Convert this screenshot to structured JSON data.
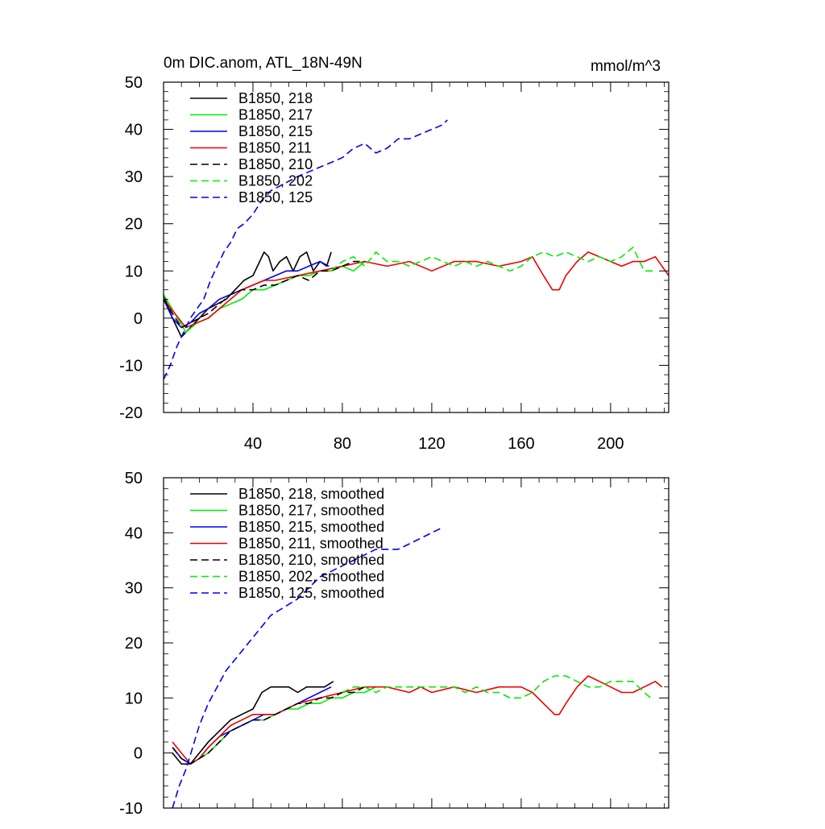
{
  "figure": {
    "title_left": "0m DIC.anom, ATL_18N-49N",
    "title_right": "mmol/m^3"
  },
  "chart_data": [
    {
      "type": "line",
      "panel": "top",
      "xlim": [
        0,
        226
      ],
      "ylim": [
        -20,
        50
      ],
      "x_ticks": [
        40,
        80,
        120,
        160,
        200
      ],
      "x_tick_labels": [
        "40",
        "80",
        "120",
        "160",
        "200"
      ],
      "y_ticks": [
        -20,
        -10,
        0,
        10,
        20,
        30,
        40,
        50
      ],
      "y_tick_labels": [
        "-20",
        "-10",
        "0",
        "10",
        "20",
        "30",
        "40",
        "50"
      ],
      "grid": false,
      "legend_position": "top-left",
      "series": [
        {
          "name": "B1850, 218",
          "color": "#000000",
          "dash": "solid",
          "x": [
            0,
            4,
            8,
            12,
            16,
            20,
            24,
            28,
            32,
            36,
            40,
            43,
            45,
            47,
            49,
            52,
            55,
            58,
            61,
            64,
            67,
            70,
            73,
            75
          ],
          "y": [
            5,
            0,
            -4,
            -2,
            0,
            2,
            3,
            4,
            6,
            8,
            9,
            12,
            14,
            13,
            10,
            12,
            13,
            10,
            13,
            14,
            10,
            12,
            11,
            14
          ]
        },
        {
          "name": "B1850, 217",
          "color": "#00ee00",
          "dash": "solid",
          "x": [
            0,
            5,
            10,
            15,
            20,
            25,
            30,
            35,
            40,
            45,
            50,
            55,
            60,
            65,
            70,
            75,
            80,
            85,
            90
          ],
          "y": [
            5,
            1,
            -3,
            -1,
            0,
            2,
            3,
            4,
            6,
            6,
            7,
            8,
            9,
            9,
            10,
            10,
            11,
            10,
            12
          ]
        },
        {
          "name": "B1850, 215",
          "color": "#0000ee",
          "dash": "solid",
          "x": [
            0,
            4,
            8,
            12,
            16,
            20,
            25,
            30,
            35,
            40,
            45,
            50,
            55,
            60,
            65,
            70,
            74
          ],
          "y": [
            4,
            0,
            -2,
            -1,
            1,
            2,
            4,
            5,
            6,
            7,
            8,
            9,
            10,
            10,
            11,
            12,
            11
          ]
        },
        {
          "name": "B1850, 211",
          "color": "#ee0000",
          "dash": "solid",
          "x": [
            0,
            5,
            10,
            15,
            20,
            25,
            30,
            35,
            40,
            45,
            50,
            60,
            70,
            80,
            90,
            100,
            110,
            120,
            130,
            140,
            150,
            160,
            165,
            170,
            174,
            177,
            180,
            185,
            190,
            195,
            200,
            205,
            210,
            215,
            220,
            226
          ],
          "y": [
            4,
            1,
            -2,
            -1,
            0,
            2,
            4,
            6,
            7,
            8,
            8,
            9,
            10,
            11,
            12,
            11,
            12,
            10,
            12,
            12,
            11,
            12,
            13,
            9,
            6,
            6,
            9,
            12,
            14,
            13,
            12,
            11,
            12,
            12,
            13,
            9
          ]
        },
        {
          "name": "B1850, 210",
          "color": "#000000",
          "dash": "dashed",
          "x": [
            0,
            4,
            8,
            12,
            16,
            20,
            25,
            30,
            35,
            40,
            45,
            50,
            55,
            60,
            65,
            70,
            75,
            80,
            85,
            90
          ],
          "y": [
            4,
            1,
            -2,
            -1,
            0,
            1,
            3,
            5,
            6,
            6,
            7,
            7,
            8,
            9,
            8,
            10,
            10,
            11,
            12,
            12
          ]
        },
        {
          "name": "B1850, 202",
          "color": "#00ee00",
          "dash": "dashed",
          "x": [
            75,
            80,
            85,
            90,
            95,
            100,
            105,
            110,
            115,
            120,
            125,
            130,
            135,
            140,
            145,
            150,
            155,
            160,
            165,
            170,
            175,
            180,
            185,
            190,
            195,
            200,
            205,
            210,
            215,
            220
          ],
          "y": [
            10,
            12,
            13,
            11,
            14,
            12,
            12,
            11,
            12,
            13,
            12,
            11,
            12,
            11,
            12,
            11,
            10,
            11,
            13,
            14,
            13,
            14,
            13,
            12,
            13,
            12,
            13,
            15,
            10,
            10
          ]
        },
        {
          "name": "B1850, 125",
          "color": "#0000ee",
          "dash": "dashed",
          "x": [
            0,
            3,
            6,
            9,
            12,
            15,
            18,
            21,
            24,
            27,
            30,
            33,
            36,
            40,
            44,
            48,
            52,
            56,
            60,
            65,
            70,
            75,
            80,
            85,
            90,
            95,
            100,
            105,
            110,
            115,
            120,
            125,
            127
          ],
          "y": [
            -13,
            -10,
            -6,
            -3,
            0,
            2,
            4,
            8,
            11,
            14,
            16,
            19,
            20,
            22,
            25,
            27,
            28,
            29,
            30,
            31,
            32,
            33,
            34,
            36,
            37,
            35,
            36,
            38,
            38,
            39,
            40,
            41,
            42
          ]
        }
      ]
    },
    {
      "type": "line",
      "panel": "bottom",
      "xlim": [
        0,
        226
      ],
      "ylim": [
        -10,
        50
      ],
      "x_ticks": [
        40,
        80,
        120,
        160,
        200
      ],
      "y_ticks": [
        -10,
        0,
        10,
        20,
        30,
        40,
        50
      ],
      "y_tick_labels": [
        "-10",
        "0",
        "10",
        "20",
        "30",
        "40",
        "50"
      ],
      "grid": false,
      "legend_position": "top-left",
      "series": [
        {
          "name": "B1850, 218, smoothed",
          "color": "#000000",
          "dash": "solid",
          "x": [
            4,
            8,
            12,
            16,
            20,
            25,
            30,
            35,
            40,
            44,
            48,
            52,
            56,
            60,
            64,
            68,
            72,
            76
          ],
          "y": [
            0,
            -2,
            -2,
            0,
            2,
            4,
            6,
            7,
            8,
            11,
            12,
            12,
            12,
            11,
            12,
            12,
            12,
            13
          ]
        },
        {
          "name": "B1850, 217, smoothed",
          "color": "#00ee00",
          "dash": "solid",
          "x": [
            4,
            8,
            12,
            16,
            20,
            25,
            30,
            35,
            40,
            45,
            50,
            55,
            60,
            65,
            70,
            75,
            80,
            85,
            90,
            95
          ],
          "y": [
            1,
            -1,
            -2,
            -1,
            0,
            2,
            4,
            5,
            6,
            6,
            7,
            8,
            8,
            9,
            9,
            10,
            10,
            11,
            11,
            12
          ]
        },
        {
          "name": "B1850, 215, smoothed",
          "color": "#0000ee",
          "dash": "solid",
          "x": [
            4,
            8,
            12,
            16,
            20,
            25,
            30,
            35,
            40,
            45,
            50,
            55,
            60,
            65,
            70,
            75
          ],
          "y": [
            1,
            -1,
            -2,
            -1,
            1,
            3,
            4,
            5,
            6,
            7,
            7,
            8,
            9,
            10,
            11,
            12
          ]
        },
        {
          "name": "B1850, 211, smoothed",
          "color": "#ee0000",
          "dash": "solid",
          "x": [
            4,
            8,
            12,
            16,
            20,
            25,
            30,
            35,
            40,
            45,
            50,
            55,
            60,
            70,
            80,
            90,
            100,
            110,
            115,
            120,
            130,
            140,
            150,
            160,
            165,
            170,
            175,
            177,
            180,
            185,
            190,
            195,
            200,
            205,
            210,
            215,
            220,
            223
          ],
          "y": [
            2,
            0,
            -2,
            -1,
            1,
            3,
            5,
            6,
            7,
            7,
            7,
            8,
            9,
            10,
            11,
            12,
            12,
            11,
            12,
            11,
            12,
            11,
            12,
            12,
            11,
            9,
            7,
            7,
            9,
            12,
            14,
            13,
            12,
            11,
            11,
            12,
            13,
            12
          ]
        },
        {
          "name": "B1850, 210, smoothed",
          "color": "#000000",
          "dash": "dashed",
          "x": [
            4,
            8,
            12,
            16,
            20,
            25,
            30,
            35,
            40,
            45,
            50,
            55,
            60,
            65,
            70,
            75,
            80,
            85,
            90
          ],
          "y": [
            1,
            -1,
            -2,
            -1,
            0,
            2,
            4,
            5,
            6,
            6,
            7,
            8,
            9,
            9,
            10,
            10,
            11,
            11,
            12
          ]
        },
        {
          "name": "B1850, 202, smoothed",
          "color": "#00ee00",
          "dash": "dashed",
          "x": [
            80,
            85,
            90,
            95,
            100,
            105,
            110,
            115,
            120,
            125,
            130,
            135,
            140,
            145,
            150,
            155,
            160,
            165,
            170,
            175,
            180,
            185,
            190,
            195,
            200,
            205,
            210,
            215,
            218
          ],
          "y": [
            11,
            12,
            12,
            11,
            12,
            12,
            12,
            12,
            12,
            12,
            12,
            11,
            12,
            11,
            11,
            10,
            10,
            11,
            13,
            14,
            14,
            13,
            12,
            12,
            13,
            13,
            13,
            11,
            10
          ]
        },
        {
          "name": "B1850, 125, smoothed",
          "color": "#0000ee",
          "dash": "dashed",
          "x": [
            4,
            7,
            10,
            13,
            16,
            20,
            24,
            28,
            32,
            36,
            40,
            44,
            48,
            52,
            56,
            60,
            65,
            70,
            75,
            80,
            85,
            90,
            95,
            100,
            105,
            110,
            115,
            120,
            125
          ],
          "y": [
            -10,
            -6,
            -3,
            1,
            5,
            9,
            12,
            15,
            17,
            19,
            21,
            23,
            25,
            26,
            27,
            28,
            30,
            32,
            33,
            34,
            35,
            36,
            37,
            37,
            37,
            38,
            39,
            40,
            41
          ]
        }
      ]
    }
  ]
}
